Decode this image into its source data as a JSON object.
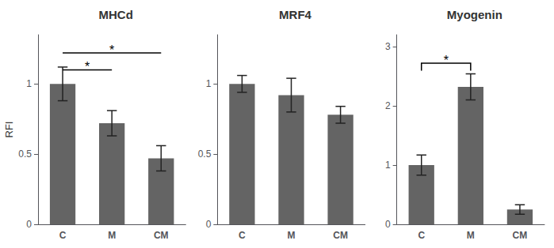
{
  "chart_data": [
    {
      "type": "bar",
      "title": "MHCd",
      "categories": [
        "C",
        "M",
        "CM"
      ],
      "values": [
        1.0,
        0.72,
        0.47
      ],
      "errors": [
        0.12,
        0.09,
        0.09
      ],
      "color": "#646464",
      "ylim": [
        0,
        1.35
      ],
      "yticks": [
        0,
        0.5,
        1
      ],
      "ylabel": "RFI",
      "grid": false,
      "annotations": [
        {
          "text": "*",
          "x1": "C",
          "x2": "M",
          "y": 1.1,
          "type": "flat"
        },
        {
          "text": "*",
          "x1": "C",
          "x2": "CM",
          "y": 1.22,
          "type": "flat"
        }
      ]
    },
    {
      "type": "bar",
      "title": "MRF4",
      "categories": [
        "C",
        "M",
        "CM"
      ],
      "values": [
        1.0,
        0.92,
        0.78
      ],
      "errors": [
        0.06,
        0.12,
        0.06
      ],
      "color": "#646464",
      "ylim": [
        0,
        1.35
      ],
      "yticks": [
        0,
        0.5,
        1
      ],
      "grid": false
    },
    {
      "type": "bar",
      "title": "Myogenin",
      "categories": [
        "C",
        "M",
        "CM"
      ],
      "values": [
        1.0,
        2.32,
        0.25
      ],
      "errors": [
        0.17,
        0.22,
        0.08
      ],
      "color": "#646464",
      "ylim": [
        0,
        3.2
      ],
      "yticks": [
        0,
        1,
        2,
        3
      ],
      "grid": false,
      "annotations": [
        {
          "text": "*",
          "x1": "C",
          "x2": "M",
          "y": 2.72,
          "type": "bracket"
        }
      ]
    }
  ]
}
